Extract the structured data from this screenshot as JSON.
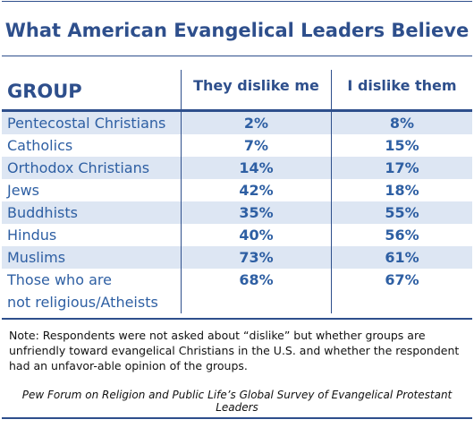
{
  "title": "What American Evangelical Leaders Believe",
  "table": {
    "header": [
      "GROUP",
      "They dislike me",
      "I dislike them"
    ],
    "rows": [
      [
        "Pentecostal Christians",
        "2%",
        "8%"
      ],
      [
        "Catholics",
        "7%",
        "15%"
      ],
      [
        "Orthodox Christians",
        "14%",
        "17%"
      ],
      [
        "Jews",
        "42%",
        "18%"
      ],
      [
        "Buddhists",
        "35%",
        "55%"
      ],
      [
        "Hindus",
        "40%",
        "56%"
      ],
      [
        "Muslims",
        "73%",
        "61%"
      ],
      [
        "Those who are\nnot religious/Atheists",
        "68%",
        "67%"
      ]
    ]
  },
  "note": "Note: Respondents were not asked about “dislike” but whether groups are unfriendly toward evangelical Christians in the U.S. and whether the respondent had an unfavor-able opinion of the groups.",
  "source": "Pew Forum on Religion and Public Life’s Global Survey of Evangelical Protestant Leaders"
}
